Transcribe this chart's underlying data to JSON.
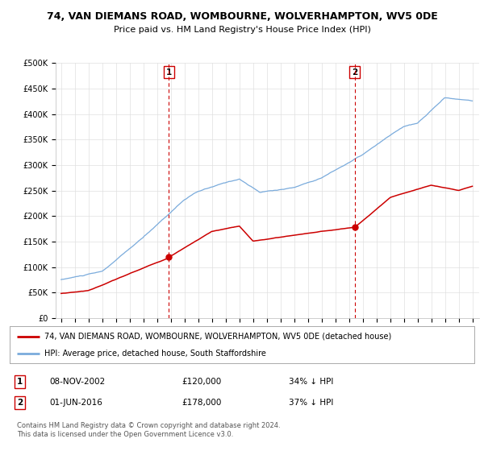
{
  "title": "74, VAN DIEMANS ROAD, WOMBOURNE, WOLVERHAMPTON, WV5 0DE",
  "subtitle": "Price paid vs. HM Land Registry's House Price Index (HPI)",
  "ylim": [
    0,
    500000
  ],
  "yticks": [
    0,
    50000,
    100000,
    150000,
    200000,
    250000,
    300000,
    350000,
    400000,
    450000,
    500000
  ],
  "ytick_labels": [
    "£0",
    "£50K",
    "£100K",
    "£150K",
    "£200K",
    "£250K",
    "£300K",
    "£350K",
    "£400K",
    "£450K",
    "£500K"
  ],
  "hpi_color": "#7aabdc",
  "price_color": "#cc0000",
  "vline_color": "#cc0000",
  "transaction1_year": 2002.86,
  "transaction1_price": 120000,
  "transaction2_year": 2016.42,
  "transaction2_price": 178000,
  "legend_price_label": "74, VAN DIEMANS ROAD, WOMBOURNE, WOLVERHAMPTON, WV5 0DE (detached house)",
  "legend_hpi_label": "HPI: Average price, detached house, South Staffordshire",
  "annotation1_date": "08-NOV-2002",
  "annotation1_price": "£120,000",
  "annotation1_pct": "34% ↓ HPI",
  "annotation2_date": "01-JUN-2016",
  "annotation2_price": "£178,000",
  "annotation2_pct": "37% ↓ HPI",
  "footer": "Contains HM Land Registry data © Crown copyright and database right 2024.\nThis data is licensed under the Open Government Licence v3.0.",
  "background_color": "#ffffff",
  "grid_color": "#e0e0e0"
}
